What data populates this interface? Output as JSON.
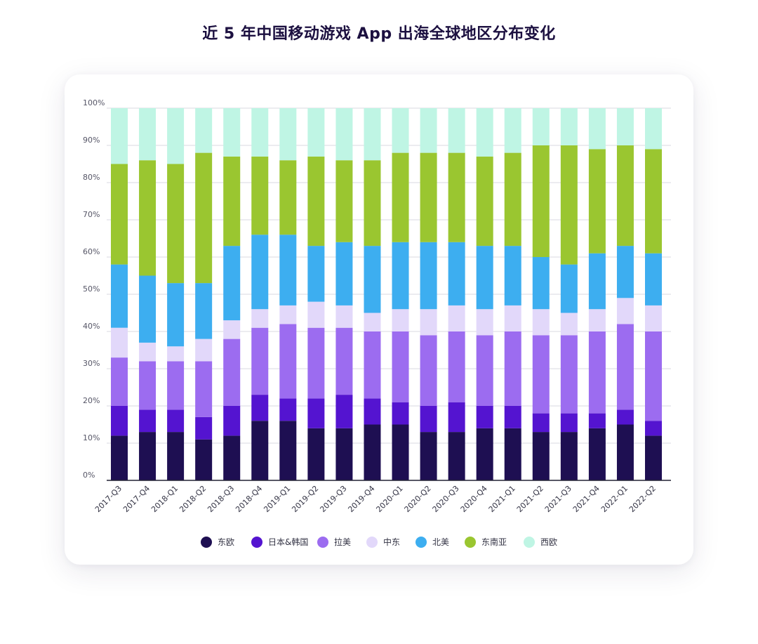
{
  "chart_data": {
    "type": "bar",
    "stacked": true,
    "title": "近 5 年中国移动游戏 App 出海全球地区分布变化",
    "xlabel": "",
    "ylabel": "",
    "ylim": [
      0,
      100
    ],
    "yticks": [
      "0%",
      "10%",
      "20%",
      "30%",
      "40%",
      "50%",
      "60%",
      "70%",
      "80%",
      "90%",
      "100%"
    ],
    "categories": [
      "2017-Q3",
      "2017-Q4",
      "2018-Q1",
      "2018-Q2",
      "2018-Q3",
      "2018-Q4",
      "2019-Q1",
      "2019-Q2",
      "2019-Q3",
      "2019-Q4",
      "2020-Q1",
      "2020-Q2",
      "2020-Q3",
      "2020-Q4",
      "2021-Q1",
      "2021-Q2",
      "2021-Q3",
      "2021-Q4",
      "2022-Q1",
      "2022-Q2"
    ],
    "series": [
      {
        "name": "东欧",
        "color": "#1e0f52",
        "values": [
          12,
          13,
          13,
          11,
          12,
          16,
          16,
          14,
          14,
          15,
          15,
          13,
          13,
          14,
          14,
          13,
          13,
          14,
          15,
          12
        ]
      },
      {
        "name": "日本&韩国",
        "color": "#5414d0",
        "values": [
          8,
          6,
          6,
          6,
          8,
          7,
          6,
          8,
          9,
          7,
          6,
          7,
          8,
          6,
          6,
          5,
          5,
          4,
          4,
          4
        ]
      },
      {
        "name": "拉美",
        "color": "#9c6cf0",
        "values": [
          13,
          13,
          13,
          15,
          18,
          18,
          20,
          19,
          18,
          18,
          19,
          19,
          19,
          19,
          20,
          21,
          21,
          22,
          23,
          24
        ]
      },
      {
        "name": "中东",
        "color": "#e2d8fa",
        "values": [
          8,
          5,
          4,
          6,
          5,
          5,
          5,
          7,
          6,
          5,
          6,
          7,
          7,
          7,
          7,
          7,
          6,
          6,
          7,
          7
        ]
      },
      {
        "name": "北美",
        "color": "#3daef0",
        "values": [
          17,
          18,
          17,
          15,
          20,
          20,
          19,
          15,
          17,
          18,
          18,
          18,
          17,
          17,
          16,
          14,
          13,
          15,
          14,
          14
        ]
      },
      {
        "name": "东南亚",
        "color": "#9ac630",
        "values": [
          27,
          31,
          32,
          35,
          24,
          21,
          20,
          24,
          22,
          23,
          24,
          24,
          24,
          24,
          25,
          30,
          32,
          28,
          27,
          28
        ]
      },
      {
        "name": "西欧",
        "color": "#bff5e4",
        "values": [
          15,
          14,
          15,
          12,
          13,
          13,
          14,
          13,
          14,
          14,
          12,
          12,
          12,
          13,
          12,
          10,
          10,
          11,
          10,
          11
        ]
      }
    ]
  }
}
